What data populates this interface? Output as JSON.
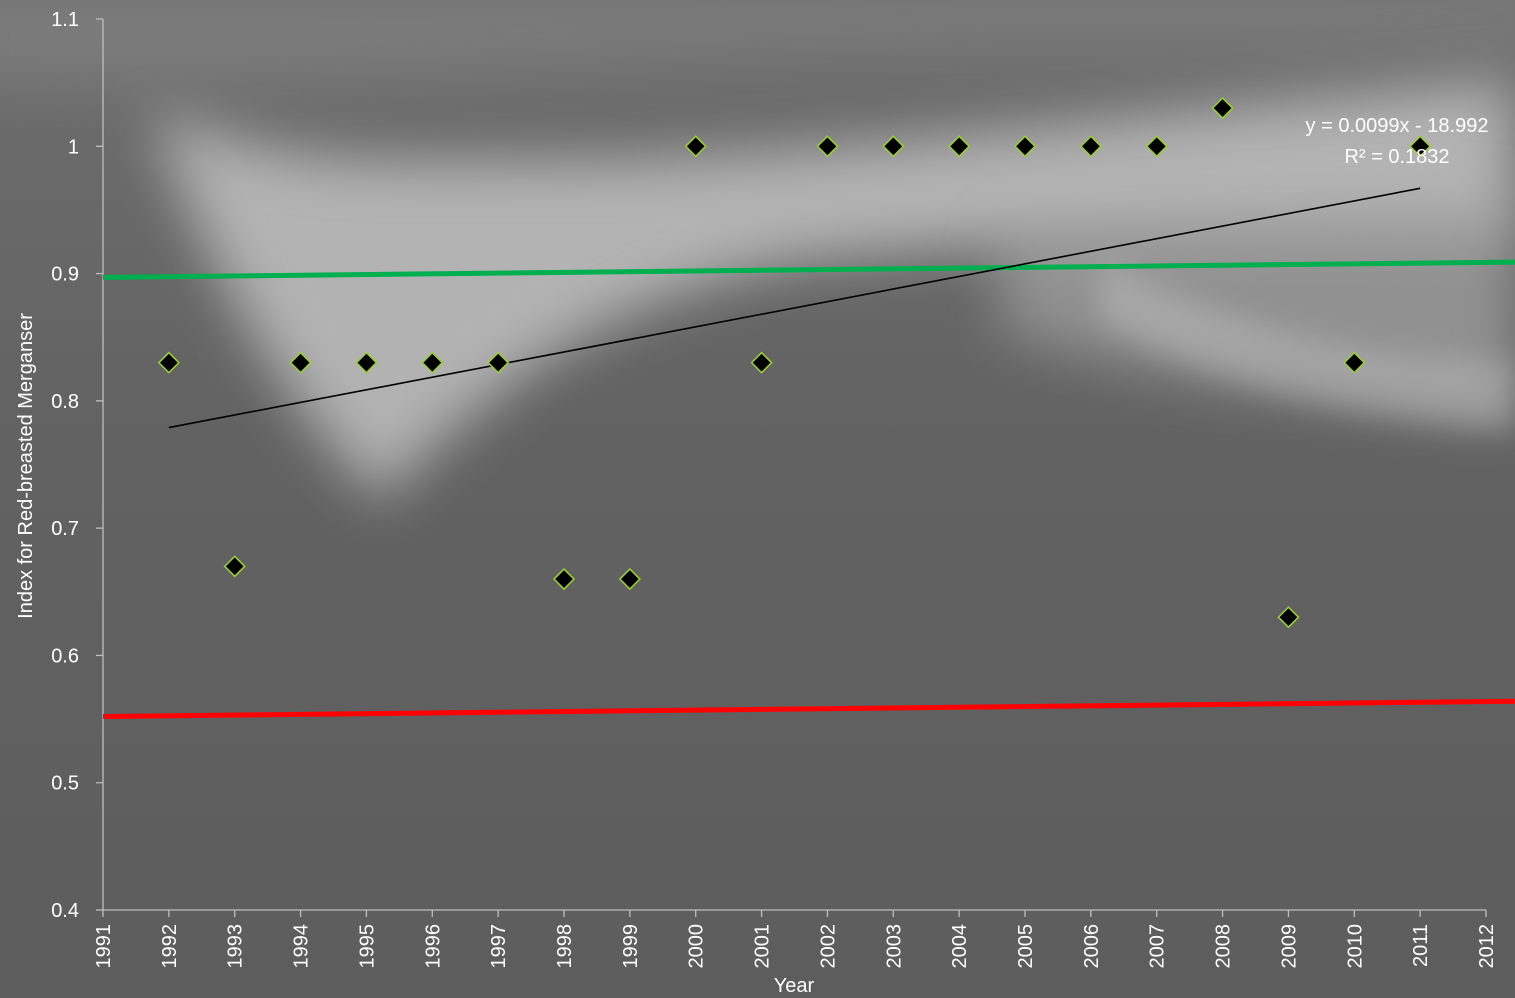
{
  "chart_data": {
    "type": "scatter",
    "title": "",
    "xlabel": "Year",
    "ylabel": "Index for Red-breasted Merganser",
    "xlim": [
      1991,
      2012
    ],
    "ylim": [
      0.4,
      1.1
    ],
    "x_ticks": [
      "1991",
      "1992",
      "1993",
      "1994",
      "1995",
      "1996",
      "1997",
      "1998",
      "1999",
      "2000",
      "2001",
      "2002",
      "2003",
      "2004",
      "2005",
      "2006",
      "2007",
      "2008",
      "2009",
      "2010",
      "2011",
      "2012"
    ],
    "y_ticks": [
      "0.4",
      "0.5",
      "0.6",
      "0.7",
      "0.8",
      "0.9",
      "1",
      "1.1"
    ],
    "grid": false,
    "series": [
      {
        "points": [
          {
            "x": 1992,
            "y": 0.83
          },
          {
            "x": 1993,
            "y": 0.67
          },
          {
            "x": 1994,
            "y": 0.83
          },
          {
            "x": 1995,
            "y": 0.83
          },
          {
            "x": 1996,
            "y": 0.83
          },
          {
            "x": 1997,
            "y": 0.83
          },
          {
            "x": 1998,
            "y": 0.66
          },
          {
            "x": 1999,
            "y": 0.66
          },
          {
            "x": 2000,
            "y": 1.0
          },
          {
            "x": 2001,
            "y": 0.83
          },
          {
            "x": 2002,
            "y": 1.0
          },
          {
            "x": 2003,
            "y": 1.0
          },
          {
            "x": 2004,
            "y": 1.0
          },
          {
            "x": 2005,
            "y": 1.0
          },
          {
            "x": 2006,
            "y": 1.0
          },
          {
            "x": 2007,
            "y": 1.0
          },
          {
            "x": 2008,
            "y": 1.03
          },
          {
            "x": 2009,
            "y": 0.63
          },
          {
            "x": 2010,
            "y": 0.83
          },
          {
            "x": 2011,
            "y": 1.0
          }
        ],
        "marker_fill": "#000000",
        "marker_edge": "#9acd32"
      }
    ],
    "trendline": {
      "x_start": 1992,
      "y_start": 0.779,
      "x_end": 2011,
      "y_end": 0.967,
      "color": "#000000",
      "equation": "y = 0.0099x - 18.992",
      "r_squared": "R² = 0.1832"
    },
    "reference_lines": [
      {
        "y_start": 0.897,
        "y_end": 0.909,
        "color": "#00b050"
      },
      {
        "y_start": 0.552,
        "y_end": 0.564,
        "color": "#ff0000"
      }
    ]
  }
}
